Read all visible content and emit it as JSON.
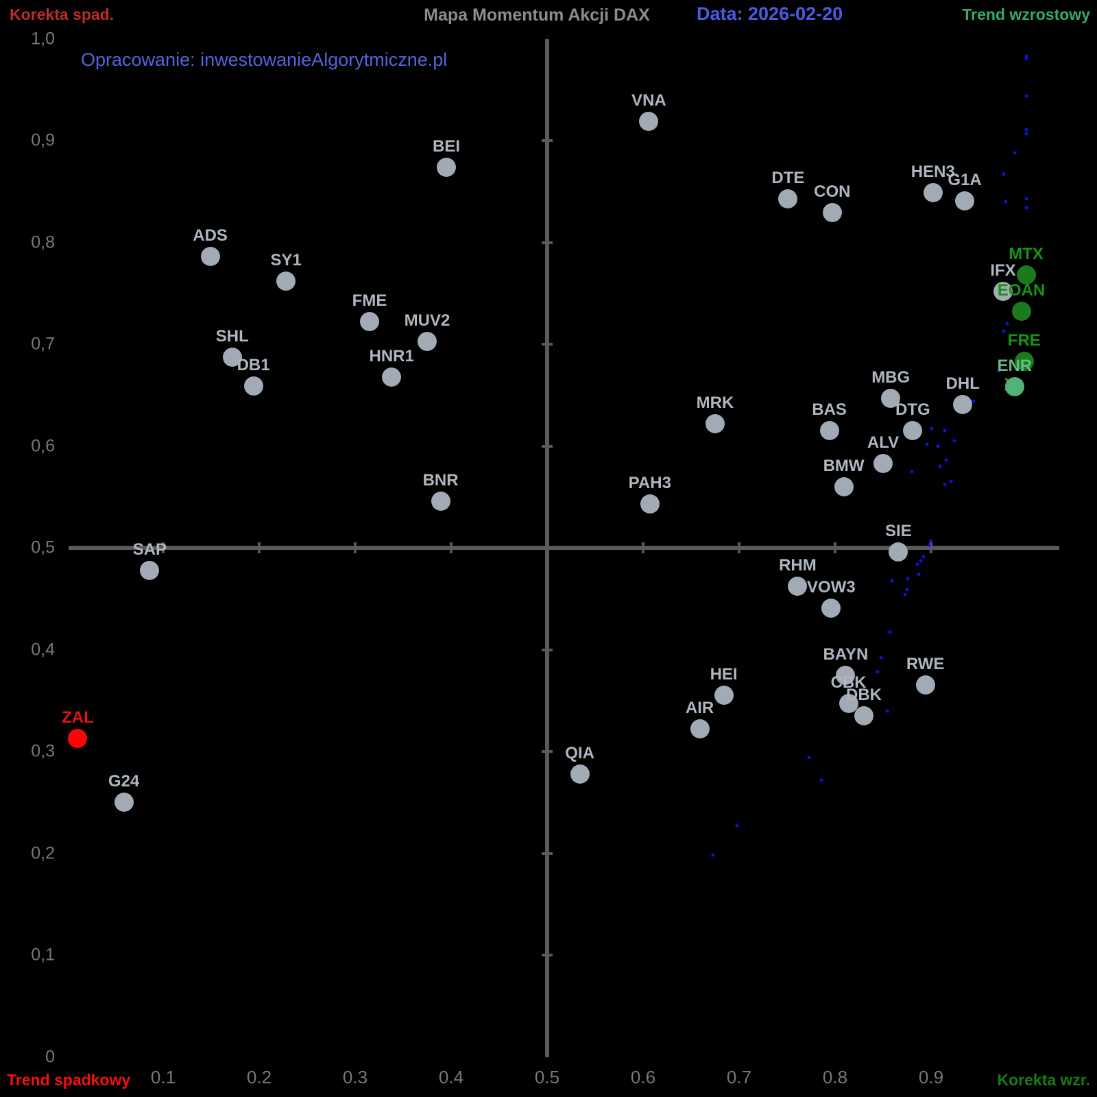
{
  "header": {
    "quadrant_top_left": "Korekta spad.",
    "title": "Mapa Momentum Akcji DAX",
    "date": "Data: 2026-02-20",
    "quadrant_top_right": "Trend wzrostowy"
  },
  "footer": {
    "quadrant_bottom_left": "Trend spadkowy",
    "quadrant_bottom_right": "Korekta wzr."
  },
  "watermark": "Opracowanie: inwestowanieAlgorytmiczne.pl",
  "colors": {
    "background": "#000000",
    "axis_line": "#5a5a5a",
    "tick_label": "#787878",
    "title_gray": "#8d8d8d",
    "date_blue": "#4b5ae2",
    "watermark_blue": "#5464dc",
    "corner_red_top": "#bd2b2b",
    "corner_green_top": "#35ab68",
    "corner_red_bottom": "#f50f0f",
    "corner_green_bottom": "#157c15",
    "marker_gray": "#a2aab6",
    "label_gray": "#aeb6c0",
    "marker_green_dark": "#1b7a1b",
    "label_green_dark": "#129712",
    "marker_green_light": "#53b377",
    "label_green_light": "#63bd85",
    "marker_red": "#fb0606",
    "label_red": "#e11414",
    "trail_blue": "#1010dd",
    "annotation_gray": "#646b75"
  },
  "chart_data": {
    "type": "scatter",
    "title": "Mapa Momentum Akcji DAX",
    "date": "2026-02-20",
    "xlim": [
      0,
      1.03
    ],
    "ylim": [
      0,
      1.0
    ],
    "grid": false,
    "quadrant_center": [
      0.5,
      0.5
    ],
    "x_ticks": [
      {
        "value": 0.1,
        "label": "0.1"
      },
      {
        "value": 0.2,
        "label": "0.2"
      },
      {
        "value": 0.3,
        "label": "0.3"
      },
      {
        "value": 0.4,
        "label": "0.4"
      },
      {
        "value": 0.5,
        "label": "0.5"
      },
      {
        "value": 0.6,
        "label": "0.6"
      },
      {
        "value": 0.7,
        "label": "0.7"
      },
      {
        "value": 0.8,
        "label": "0.8"
      },
      {
        "value": 0.9,
        "label": "0.9"
      }
    ],
    "y_ticks": [
      {
        "value": 0.0,
        "label": "0"
      },
      {
        "value": 0.1,
        "label": "0,1"
      },
      {
        "value": 0.2,
        "label": "0,2"
      },
      {
        "value": 0.3,
        "label": "0,3"
      },
      {
        "value": 0.4,
        "label": "0,4"
      },
      {
        "value": 0.5,
        "label": "0,5"
      },
      {
        "value": 0.6,
        "label": "0,6"
      },
      {
        "value": 0.7,
        "label": "0,7"
      },
      {
        "value": 0.8,
        "label": "0,8"
      },
      {
        "value": 0.9,
        "label": "0,9"
      },
      {
        "value": 1.0,
        "label": "1,0"
      }
    ],
    "series": [
      {
        "name": "neutral",
        "color_key": "gray",
        "points": [
          {
            "label": "VNA",
            "x": 0.606,
            "y": 0.919
          },
          {
            "label": "BEI",
            "x": 0.395,
            "y": 0.874
          },
          {
            "label": "DTE",
            "x": 0.751,
            "y": 0.843
          },
          {
            "label": "CON",
            "x": 0.797,
            "y": 0.829
          },
          {
            "label": "HEN3",
            "x": 0.902,
            "y": 0.849
          },
          {
            "label": "G1A",
            "x": 0.935,
            "y": 0.841
          },
          {
            "label": "ADS",
            "x": 0.149,
            "y": 0.786
          },
          {
            "label": "SY1",
            "x": 0.228,
            "y": 0.762
          },
          {
            "label": "FME",
            "x": 0.315,
            "y": 0.722
          },
          {
            "label": "MUV2",
            "x": 0.375,
            "y": 0.703
          },
          {
            "label": "SHL",
            "x": 0.172,
            "y": 0.687
          },
          {
            "label": "DB1",
            "x": 0.194,
            "y": 0.659
          },
          {
            "label": "HNR1",
            "x": 0.338,
            "y": 0.668
          },
          {
            "label": "IFX",
            "x": 0.975,
            "y": 0.752
          },
          {
            "label": "MBG",
            "x": 0.858,
            "y": 0.647
          },
          {
            "label": "DHL",
            "x": 0.933,
            "y": 0.641
          },
          {
            "label": "DTG",
            "x": 0.881,
            "y": 0.615
          },
          {
            "label": "MRK",
            "x": 0.675,
            "y": 0.622
          },
          {
            "label": "BAS",
            "x": 0.794,
            "y": 0.615
          },
          {
            "label": "ALV",
            "x": 0.85,
            "y": 0.583
          },
          {
            "label": "BMW",
            "x": 0.809,
            "y": 0.56
          },
          {
            "label": "PAH3",
            "x": 0.607,
            "y": 0.543
          },
          {
            "label": "BNR",
            "x": 0.389,
            "y": 0.546
          },
          {
            "label": "SIE",
            "x": 0.866,
            "y": 0.496
          },
          {
            "label": "SAP",
            "x": 0.086,
            "y": 0.478
          },
          {
            "label": "RHM",
            "x": 0.761,
            "y": 0.462
          },
          {
            "label": "VOW3",
            "x": 0.796,
            "y": 0.441
          },
          {
            "label": "BAYN",
            "x": 0.811,
            "y": 0.375
          },
          {
            "label": "RWE",
            "x": 0.894,
            "y": 0.365
          },
          {
            "label": "HEI",
            "x": 0.684,
            "y": 0.355
          },
          {
            "label": "CBK",
            "x": 0.814,
            "y": 0.347
          },
          {
            "label": "DBK",
            "x": 0.83,
            "y": 0.335
          },
          {
            "label": "AIR",
            "x": 0.659,
            "y": 0.322
          },
          {
            "label": "QIA",
            "x": 0.534,
            "y": 0.278
          },
          {
            "label": "G24",
            "x": 0.059,
            "y": 0.25
          }
        ]
      },
      {
        "name": "trend-up",
        "color_key": "green_dark",
        "points": [
          {
            "label": "MTX",
            "x": 0.999,
            "y": 0.768
          },
          {
            "label": "EOAN",
            "x": 0.994,
            "y": 0.732
          },
          {
            "label": "FRE",
            "x": 0.997,
            "y": 0.683
          }
        ]
      },
      {
        "name": "trend-up-light",
        "color_key": "green_light",
        "points": [
          {
            "label": "ENR",
            "x": 0.987,
            "y": 0.658
          }
        ]
      },
      {
        "name": "trend-down",
        "color_key": "red",
        "points": [
          {
            "label": "ZAL",
            "x": 0.011,
            "y": 0.313
          }
        ]
      }
    ],
    "annotations": [
      {
        "label": "X",
        "x": 0.982,
        "y": 0.66
      }
    ],
    "trail": {
      "name": "index-history-trail",
      "points": [
        [
          0.999,
          0.983
        ],
        [
          0.999,
          0.981
        ],
        [
          0.999,
          0.944
        ],
        [
          0.999,
          0.911
        ],
        [
          0.999,
          0.907
        ],
        [
          0.987,
          0.888
        ],
        [
          0.976,
          0.867
        ],
        [
          0.999,
          0.843
        ],
        [
          0.978,
          0.84
        ],
        [
          0.999,
          0.834
        ],
        [
          0.979,
          0.72
        ],
        [
          0.976,
          0.713
        ],
        [
          0.971,
          0.674
        ],
        [
          0.944,
          0.644
        ],
        [
          0.901,
          0.617
        ],
        [
          0.914,
          0.615
        ],
        [
          0.896,
          0.602
        ],
        [
          0.907,
          0.6
        ],
        [
          0.924,
          0.605
        ],
        [
          0.916,
          0.586
        ],
        [
          0.909,
          0.58
        ],
        [
          0.88,
          0.575
        ],
        [
          0.914,
          0.562
        ],
        [
          0.921,
          0.565
        ],
        [
          0.9,
          0.507
        ],
        [
          0.898,
          0.503
        ],
        [
          0.892,
          0.491
        ],
        [
          0.889,
          0.487
        ],
        [
          0.886,
          0.484
        ],
        [
          0.887,
          0.474
        ],
        [
          0.876,
          0.47
        ],
        [
          0.859,
          0.468
        ],
        [
          0.875,
          0.459
        ],
        [
          0.873,
          0.454
        ],
        [
          0.857,
          0.417
        ],
        [
          0.848,
          0.392
        ],
        [
          0.844,
          0.378
        ],
        [
          0.854,
          0.34
        ],
        [
          0.773,
          0.294
        ],
        [
          0.786,
          0.272
        ],
        [
          0.698,
          0.227
        ],
        [
          0.673,
          0.198
        ]
      ]
    }
  }
}
